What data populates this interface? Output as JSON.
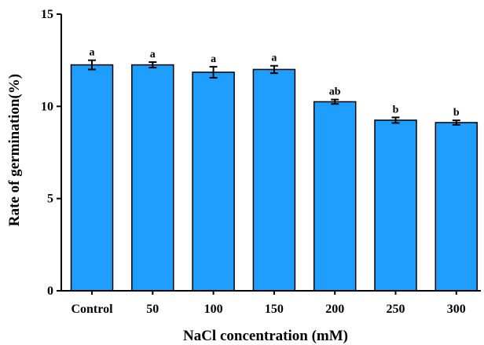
{
  "chart_data": {
    "type": "bar",
    "categories": [
      "Control",
      "50",
      "100",
      "150",
      "200",
      "250",
      "300"
    ],
    "series": [
      {
        "values": [
          12.25,
          12.25,
          11.85,
          12.0,
          10.25,
          9.25,
          9.12
        ],
        "errors": [
          0.25,
          0.15,
          0.3,
          0.2,
          0.12,
          0.15,
          0.12
        ],
        "significance": [
          "a",
          "a",
          "a",
          "a",
          "ab",
          "b",
          "b"
        ],
        "color": "#1e9fff",
        "edge_color": "#000000"
      }
    ],
    "xlabel": "NaCl concentration (mM)",
    "ylabel": "Rate of germination(%)",
    "ylim": [
      0,
      15
    ],
    "yticks": [
      0,
      5,
      10,
      15
    ],
    "grid": false,
    "legend": "none"
  }
}
